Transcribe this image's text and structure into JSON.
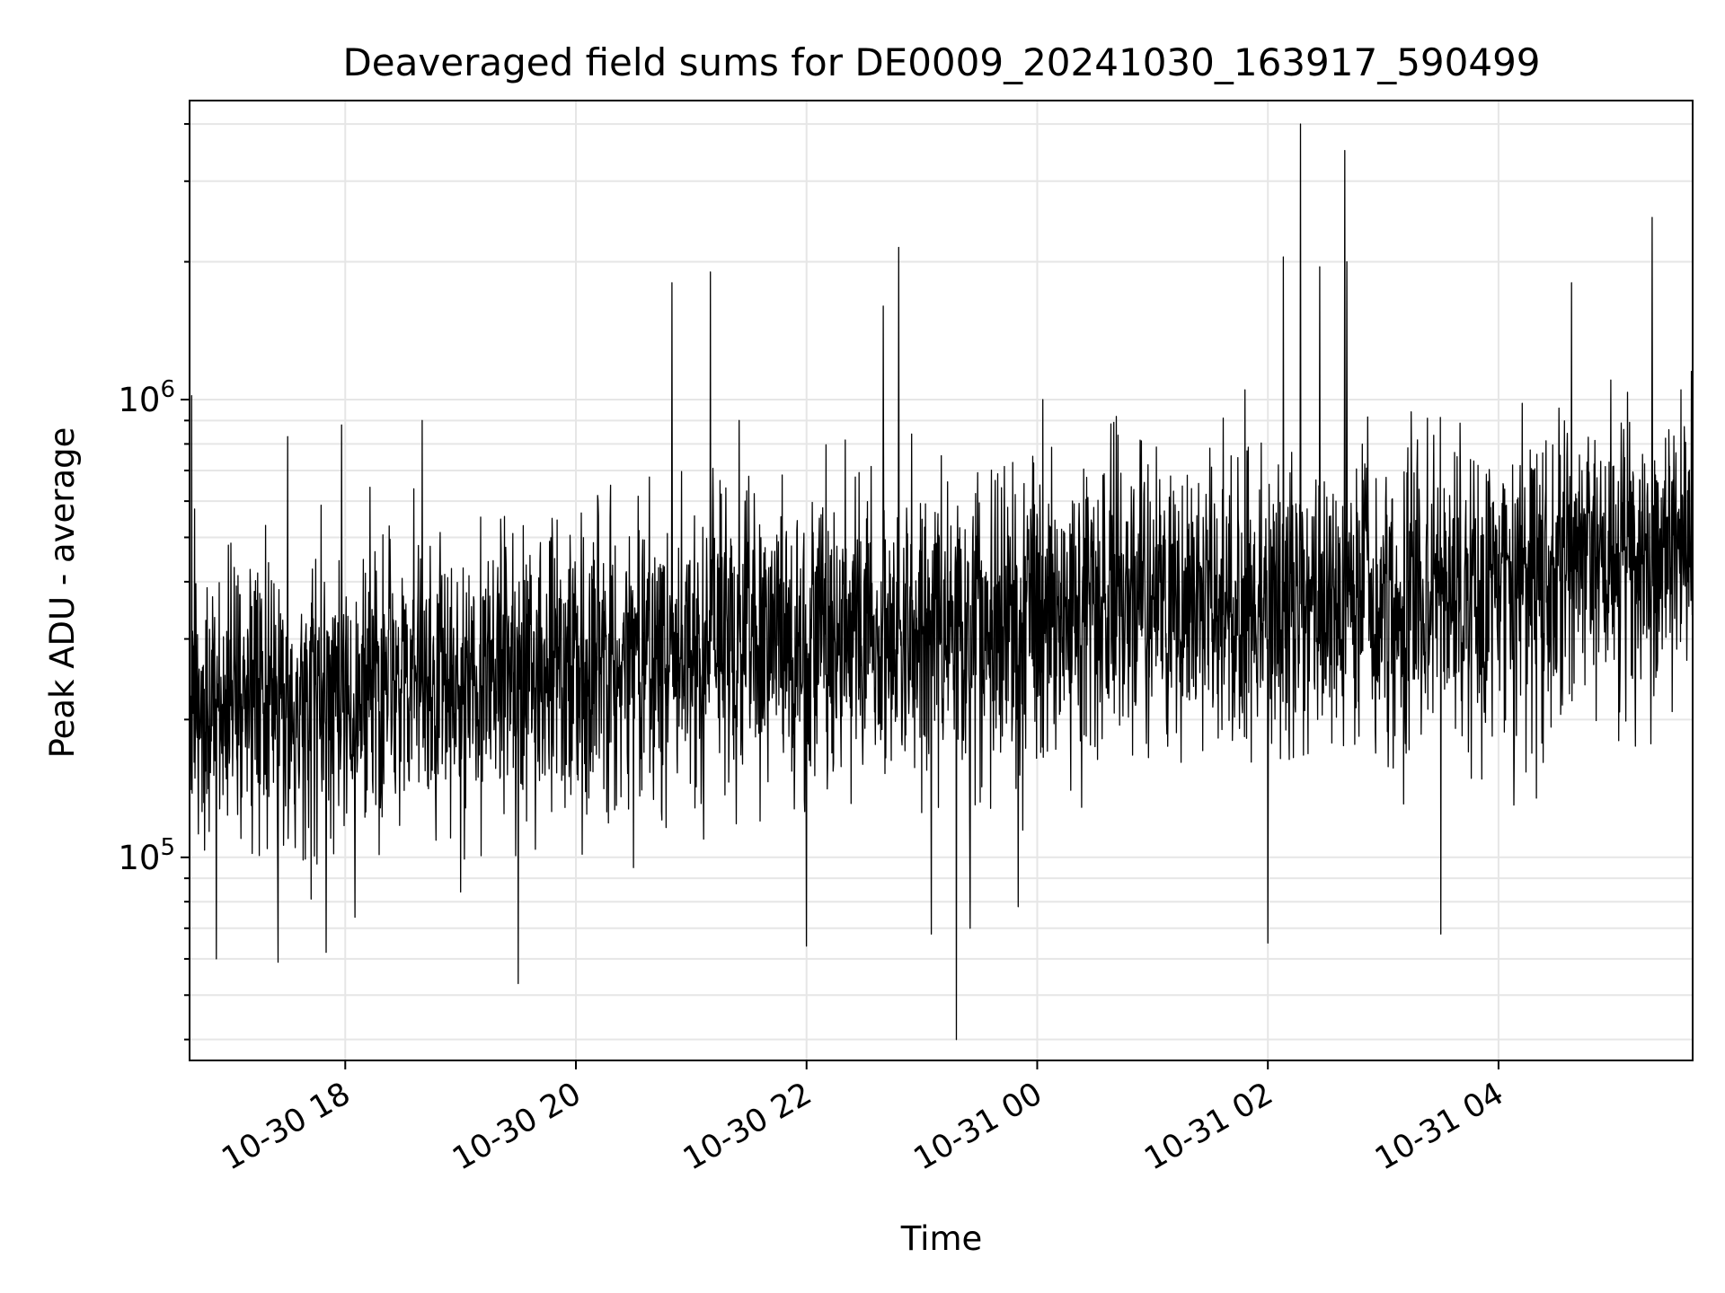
{
  "chart_data": {
    "type": "line",
    "title": "Deaveraged field sums for DE0009_20241030_163917_590499",
    "xlabel": "Time",
    "ylabel": "Peak ADU - average",
    "x_range": [
      "2024-10-30 16:39",
      "2024-10-31 05:41"
    ],
    "ylim": [
      36000,
      4500000
    ],
    "y_scale": "log",
    "grid": true,
    "legend": "none",
    "line_color": "#000000",
    "x_ticks": [
      {
        "time": "2024-10-30 18:00",
        "label": "10-30 18"
      },
      {
        "time": "2024-10-30 20:00",
        "label": "10-30 20"
      },
      {
        "time": "2024-10-30 22:00",
        "label": "10-30 22"
      },
      {
        "time": "2024-10-31 00:00",
        "label": "10-31 00"
      },
      {
        "time": "2024-10-31 02:00",
        "label": "10-31 02"
      },
      {
        "time": "2024-10-31 04:00",
        "label": "10-31 04"
      }
    ],
    "y_ticks": [
      {
        "value": 100000,
        "base": "10",
        "exp": "5"
      },
      {
        "value": 1000000,
        "base": "10",
        "exp": "6"
      }
    ],
    "series": [
      {
        "trend": [
          {
            "time": "2024-10-30 16:39",
            "value": 230000
          },
          {
            "time": "2024-10-30 17:30",
            "value": 210000
          },
          {
            "time": "2024-10-30 18:00",
            "value": 220000
          },
          {
            "time": "2024-10-30 19:00",
            "value": 250000
          },
          {
            "time": "2024-10-30 20:00",
            "value": 270000
          },
          {
            "time": "2024-10-30 21:00",
            "value": 290000
          },
          {
            "time": "2024-10-30 22:00",
            "value": 300000
          },
          {
            "time": "2024-10-30 23:00",
            "value": 310000
          },
          {
            "time": "2024-10-31 00:00",
            "value": 340000
          },
          {
            "time": "2024-10-31 01:00",
            "value": 360000
          },
          {
            "time": "2024-10-31 02:00",
            "value": 350000
          },
          {
            "time": "2024-10-31 03:00",
            "value": 360000
          },
          {
            "time": "2024-10-31 04:00",
            "value": 380000
          },
          {
            "time": "2024-10-31 05:00",
            "value": 440000
          },
          {
            "time": "2024-10-31 05:41",
            "value": 480000
          }
        ],
        "peaks": [
          {
            "time": "2024-10-30 16:40",
            "value": 1020000
          },
          {
            "time": "2024-10-30 17:30",
            "value": 830000
          },
          {
            "time": "2024-10-30 17:58",
            "value": 880000
          },
          {
            "time": "2024-10-30 18:40",
            "value": 900000
          },
          {
            "time": "2024-10-30 20:50",
            "value": 1800000
          },
          {
            "time": "2024-10-30 21:10",
            "value": 1900000
          },
          {
            "time": "2024-10-30 21:25",
            "value": 900000
          },
          {
            "time": "2024-10-30 22:40",
            "value": 1600000
          },
          {
            "time": "2024-10-30 22:48",
            "value": 2150000
          },
          {
            "time": "2024-10-31 00:03",
            "value": 1000000
          },
          {
            "time": "2024-10-31 01:48",
            "value": 1050000
          },
          {
            "time": "2024-10-31 02:08",
            "value": 2050000
          },
          {
            "time": "2024-10-31 02:17",
            "value": 4000000
          },
          {
            "time": "2024-10-31 02:27",
            "value": 1950000
          },
          {
            "time": "2024-10-31 02:40",
            "value": 3500000
          },
          {
            "time": "2024-10-31 02:41",
            "value": 2000000
          },
          {
            "time": "2024-10-31 04:38",
            "value": 1800000
          },
          {
            "time": "2024-10-31 05:20",
            "value": 2500000
          },
          {
            "time": "2024-10-31 05:35",
            "value": 1050000
          }
        ],
        "dips": [
          {
            "time": "2024-10-30 16:53",
            "value": 60000
          },
          {
            "time": "2024-10-30 17:25",
            "value": 59000
          },
          {
            "time": "2024-10-30 17:50",
            "value": 62000
          },
          {
            "time": "2024-10-30 18:05",
            "value": 74000
          },
          {
            "time": "2024-10-30 19:00",
            "value": 84000
          },
          {
            "time": "2024-10-30 19:30",
            "value": 53000
          },
          {
            "time": "2024-10-30 20:30",
            "value": 95000
          },
          {
            "time": "2024-10-30 22:00",
            "value": 64000
          },
          {
            "time": "2024-10-30 23:05",
            "value": 68000
          },
          {
            "time": "2024-10-30 23:18",
            "value": 40000
          },
          {
            "time": "2024-10-30 23:25",
            "value": 70000
          },
          {
            "time": "2024-10-30 23:50",
            "value": 78000
          },
          {
            "time": "2024-10-31 02:00",
            "value": 65000
          },
          {
            "time": "2024-10-31 03:30",
            "value": 68000
          }
        ]
      }
    ]
  }
}
